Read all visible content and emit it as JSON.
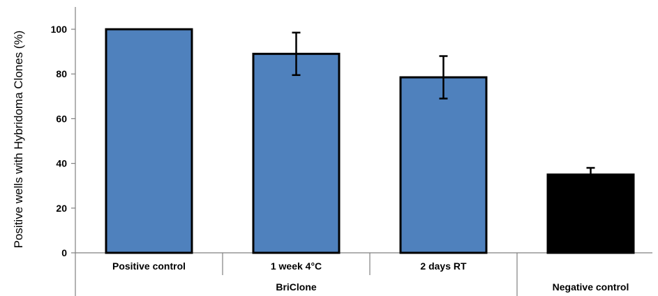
{
  "chart_data": {
    "type": "bar",
    "title": "",
    "xlabel": "",
    "ylabel": "Positive wells with Hybridoma Clones (%)",
    "ylim": [
      0,
      110
    ],
    "yticks": [
      "0",
      "20",
      "40",
      "60",
      "80",
      "100"
    ],
    "categories": [
      "Positive control",
      "1 week 4°C",
      "2 days RT",
      "Negative control"
    ],
    "values": [
      100,
      89,
      78.5,
      35
    ],
    "errors": [
      0,
      9.5,
      9.5,
      3
    ],
    "colors": [
      "#4f81bd",
      "#4f81bd",
      "#4f81bd",
      "#000000"
    ],
    "groups": [
      {
        "label": "BriClone",
        "categories": [
          "Positive control",
          "1 week 4°C",
          "2 days RT"
        ]
      },
      {
        "label": "",
        "categories": [
          "Negative control"
        ]
      }
    ],
    "grid": false,
    "legend": "none"
  }
}
